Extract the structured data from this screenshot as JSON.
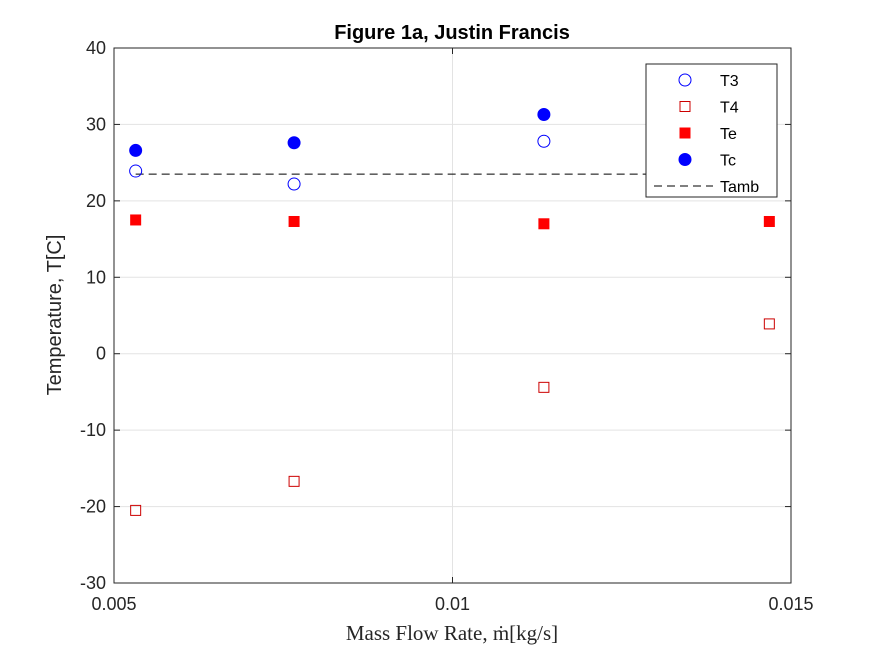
{
  "chart_data": {
    "type": "scatter",
    "title": "Figure 1a, Justin Francis",
    "xlabel": "Mass Flow Rate, ṁ[kg/s]",
    "ylabel": "Temperature, T[C]",
    "xlim": [
      0.005,
      0.015
    ],
    "ylim": [
      -30,
      40
    ],
    "xticks": [
      0.005,
      0.01,
      0.015
    ],
    "xtick_labels": [
      "0.005",
      "0.01",
      "0.015"
    ],
    "yticks": [
      -30,
      -20,
      -10,
      0,
      10,
      20,
      30,
      40
    ],
    "ytick_labels": [
      "-30",
      "-20",
      "-10",
      "0",
      "10",
      "20",
      "30",
      "40"
    ],
    "grid": true,
    "legend_position": "top-right",
    "series": [
      {
        "name": "T3",
        "marker": "circle-open",
        "color": "#0000ff",
        "x": [
          0.00532,
          0.00766,
          0.01135
        ],
        "y": [
          23.9,
          22.2,
          27.8
        ]
      },
      {
        "name": "T4",
        "marker": "square-open",
        "color": "#cc0000",
        "x": [
          0.00532,
          0.00766,
          0.01135,
          0.01468
        ],
        "y": [
          -20.5,
          -16.7,
          -4.4,
          3.9
        ]
      },
      {
        "name": "Te",
        "marker": "square-filled",
        "color": "#ff0000",
        "x": [
          0.00532,
          0.00766,
          0.01135,
          0.01468
        ],
        "y": [
          17.5,
          17.3,
          17.0,
          17.3
        ]
      },
      {
        "name": "Tc",
        "marker": "circle-filled",
        "color": "#0000ff",
        "x": [
          0.00532,
          0.00766,
          0.01135
        ],
        "y": [
          26.6,
          27.6,
          31.3
        ]
      },
      {
        "name": "Tamb",
        "marker": "line-dashed",
        "color": "#000000",
        "x": [
          0.00532,
          0.01468
        ],
        "y": [
          23.5,
          23.5
        ]
      }
    ]
  }
}
